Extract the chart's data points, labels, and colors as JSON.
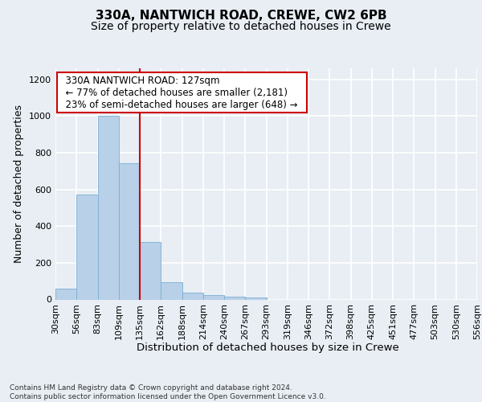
{
  "title1": "330A, NANTWICH ROAD, CREWE, CW2 6PB",
  "title2": "Size of property relative to detached houses in Crewe",
  "xlabel": "Distribution of detached houses by size in Crewe",
  "ylabel": "Number of detached properties",
  "bar_values": [
    60,
    570,
    1000,
    745,
    315,
    95,
    38,
    25,
    15,
    12,
    0,
    0,
    0,
    0,
    0,
    0,
    0,
    0,
    0,
    0
  ],
  "bin_labels": [
    "30sqm",
    "56sqm",
    "83sqm",
    "109sqm",
    "135sqm",
    "162sqm",
    "188sqm",
    "214sqm",
    "240sqm",
    "267sqm",
    "293sqm",
    "319sqm",
    "346sqm",
    "372sqm",
    "398sqm",
    "425sqm",
    "451sqm",
    "477sqm",
    "503sqm",
    "530sqm",
    "556sqm"
  ],
  "bar_color": "#b8d0e8",
  "bar_edge_color": "#7aafd4",
  "vline_color": "#cc0000",
  "annotation_text": "  330A NANTWICH ROAD: 127sqm  \n  ← 77% of detached houses are smaller (2,181)  \n  23% of semi-detached houses are larger (648) →  ",
  "annotation_box_edge_color": "#cc0000",
  "ylim": [
    0,
    1260
  ],
  "yticks": [
    0,
    200,
    400,
    600,
    800,
    1000,
    1200
  ],
  "footer": "Contains HM Land Registry data © Crown copyright and database right 2024.\nContains public sector information licensed under the Open Government Licence v3.0.",
  "background_color": "#e8eef4",
  "grid_color": "#ffffff",
  "title1_fontsize": 11,
  "title2_fontsize": 10,
  "annot_fontsize": 8.5,
  "ylabel_fontsize": 9,
  "xlabel_fontsize": 9.5,
  "tick_fontsize": 8,
  "footer_fontsize": 6.5
}
